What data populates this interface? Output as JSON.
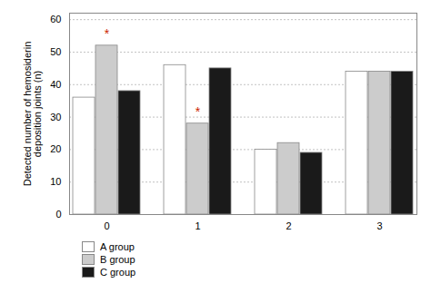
{
  "chart_data": {
    "type": "bar",
    "categories": [
      "0",
      "1",
      "2",
      "3"
    ],
    "series": [
      {
        "name": "A group",
        "color": "#ffffff",
        "values": [
          36,
          46,
          20,
          44
        ]
      },
      {
        "name": "B group",
        "color": "#cccccc",
        "values": [
          52,
          28,
          22,
          44
        ]
      },
      {
        "name": "C group",
        "color": "#1a1a1a",
        "values": [
          38,
          45,
          19,
          44
        ]
      }
    ],
    "ylabel": "Detected number of hemosiderin\ndeposition joints (n)",
    "ylim": [
      0,
      62
    ],
    "yticks": [
      0,
      10,
      20,
      30,
      40,
      50,
      60
    ],
    "grid": true,
    "legend": "bottom",
    "annotations": [
      {
        "category": "0",
        "series": "B group",
        "text": "*",
        "color": "#cc2200"
      },
      {
        "category": "1",
        "series": "B group",
        "text": "*",
        "color": "#cc2200"
      }
    ]
  }
}
